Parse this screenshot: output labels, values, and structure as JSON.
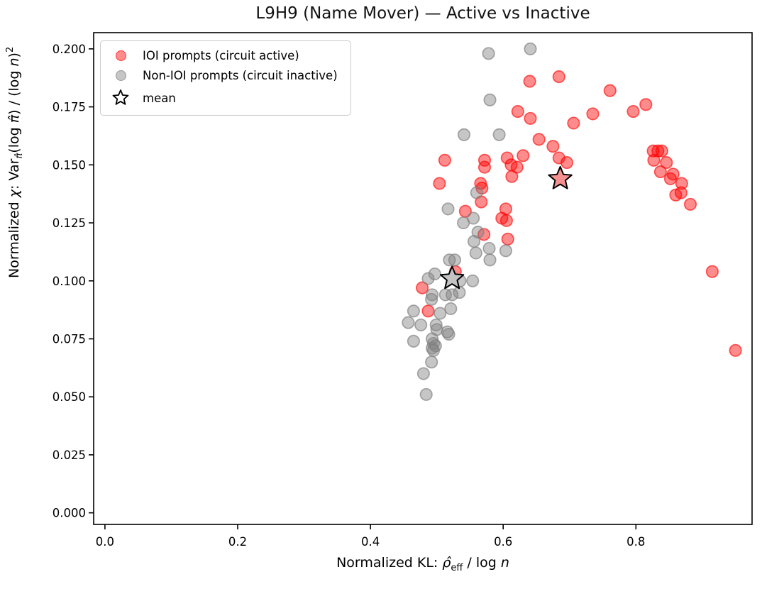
{
  "chart_data": {
    "type": "scatter",
    "title": "L9H9 (Name Mover) — Active vs Inactive",
    "xlabel": "Normalized KL: ρ̂_eff / log n",
    "ylabel": "Normalized χ: Var_π̂(log π̂) / (log n)²",
    "xlabel_parts": {
      "pre": "Normalized KL: ",
      "var": "ρ̂",
      "sub": "eff",
      "mid": " / log ",
      "n": "n"
    },
    "ylabel_parts": {
      "pre": "Normalized ",
      "chi": "χ",
      "pre2": ": Var",
      "sub": "π̂",
      "mid1": "(log ",
      "pi": "π̂",
      "mid2": ") / (log ",
      "n": "n",
      "mid3": ")",
      "sup": "2"
    },
    "xlim": [
      -0.017,
      0.975
    ],
    "ylim": [
      -0.005,
      0.207
    ],
    "x_ticks": [
      0.0,
      0.2,
      0.4,
      0.6,
      0.8
    ],
    "x_tick_labels": [
      "0.0",
      "0.2",
      "0.4",
      "0.6",
      "0.8"
    ],
    "y_ticks": [
      0.0,
      0.025,
      0.05,
      0.075,
      0.1,
      0.125,
      0.15,
      0.175,
      0.2
    ],
    "y_tick_labels": [
      "0.000",
      "0.025",
      "0.050",
      "0.075",
      "0.100",
      "0.125",
      "0.150",
      "0.175",
      "0.200"
    ],
    "grid": false,
    "legend_position": "upper left",
    "mean_label": "mean",
    "series": [
      {
        "id": "ioi",
        "name": "IOI prompts (circuit active)",
        "color": "#ff0000",
        "marker_fill": "rgba(255,0,0,0.45)",
        "marker_edge": "rgba(255,0,0,0.62)",
        "star_fill": "#f59090",
        "mean": [
          0.686,
          0.144
        ],
        "points": [
          [
            0.684,
            0.188
          ],
          [
            0.64,
            0.186
          ],
          [
            0.622,
            0.173
          ],
          [
            0.641,
            0.17
          ],
          [
            0.706,
            0.168
          ],
          [
            0.735,
            0.172
          ],
          [
            0.761,
            0.182
          ],
          [
            0.815,
            0.176
          ],
          [
            0.796,
            0.173
          ],
          [
            0.654,
            0.161
          ],
          [
            0.675,
            0.158
          ],
          [
            0.63,
            0.154
          ],
          [
            0.606,
            0.153
          ],
          [
            0.684,
            0.153
          ],
          [
            0.696,
            0.151
          ],
          [
            0.612,
            0.15
          ],
          [
            0.621,
            0.149
          ],
          [
            0.572,
            0.152
          ],
          [
            0.572,
            0.149
          ],
          [
            0.512,
            0.152
          ],
          [
            0.504,
            0.142
          ],
          [
            0.613,
            0.145
          ],
          [
            0.566,
            0.142
          ],
          [
            0.568,
            0.14
          ],
          [
            0.567,
            0.134
          ],
          [
            0.543,
            0.13
          ],
          [
            0.604,
            0.131
          ],
          [
            0.598,
            0.127
          ],
          [
            0.605,
            0.126
          ],
          [
            0.571,
            0.12
          ],
          [
            0.607,
            0.118
          ],
          [
            0.528,
            0.104
          ],
          [
            0.478,
            0.097
          ],
          [
            0.487,
            0.087
          ],
          [
            0.826,
            0.156
          ],
          [
            0.833,
            0.156
          ],
          [
            0.839,
            0.156
          ],
          [
            0.827,
            0.152
          ],
          [
            0.846,
            0.151
          ],
          [
            0.837,
            0.147
          ],
          [
            0.856,
            0.146
          ],
          [
            0.852,
            0.144
          ],
          [
            0.869,
            0.142
          ],
          [
            0.86,
            0.137
          ],
          [
            0.868,
            0.138
          ],
          [
            0.882,
            0.133
          ],
          [
            0.915,
            0.104
          ],
          [
            0.95,
            0.07
          ]
        ]
      },
      {
        "id": "non-ioi",
        "name": "Non-IOI prompts (circuit inactive)",
        "color": "#808080",
        "marker_fill": "rgba(128,128,128,0.45)",
        "marker_edge": "rgba(128,128,128,0.68)",
        "star_fill": "#c4c4c4",
        "mean": [
          0.523,
          0.101
        ],
        "points": [
          [
            0.578,
            0.198
          ],
          [
            0.641,
            0.2
          ],
          [
            0.58,
            0.178
          ],
          [
            0.541,
            0.163
          ],
          [
            0.594,
            0.163
          ],
          [
            0.56,
            0.138
          ],
          [
            0.517,
            0.131
          ],
          [
            0.555,
            0.127
          ],
          [
            0.54,
            0.125
          ],
          [
            0.562,
            0.121
          ],
          [
            0.556,
            0.117
          ],
          [
            0.559,
            0.112
          ],
          [
            0.579,
            0.114
          ],
          [
            0.604,
            0.113
          ],
          [
            0.58,
            0.109
          ],
          [
            0.519,
            0.109
          ],
          [
            0.527,
            0.109
          ],
          [
            0.487,
            0.101
          ],
          [
            0.497,
            0.103
          ],
          [
            0.535,
            0.1
          ],
          [
            0.554,
            0.1
          ],
          [
            0.493,
            0.094
          ],
          [
            0.513,
            0.094
          ],
          [
            0.523,
            0.094
          ],
          [
            0.534,
            0.095
          ],
          [
            0.492,
            0.092
          ],
          [
            0.465,
            0.087
          ],
          [
            0.521,
            0.088
          ],
          [
            0.505,
            0.086
          ],
          [
            0.457,
            0.082
          ],
          [
            0.476,
            0.081
          ],
          [
            0.499,
            0.081
          ],
          [
            0.5,
            0.079
          ],
          [
            0.518,
            0.077
          ],
          [
            0.516,
            0.078
          ],
          [
            0.465,
            0.074
          ],
          [
            0.493,
            0.075
          ],
          [
            0.495,
            0.073
          ],
          [
            0.498,
            0.072
          ],
          [
            0.493,
            0.071
          ],
          [
            0.495,
            0.07
          ],
          [
            0.492,
            0.065
          ],
          [
            0.48,
            0.06
          ],
          [
            0.484,
            0.051
          ]
        ]
      }
    ]
  }
}
